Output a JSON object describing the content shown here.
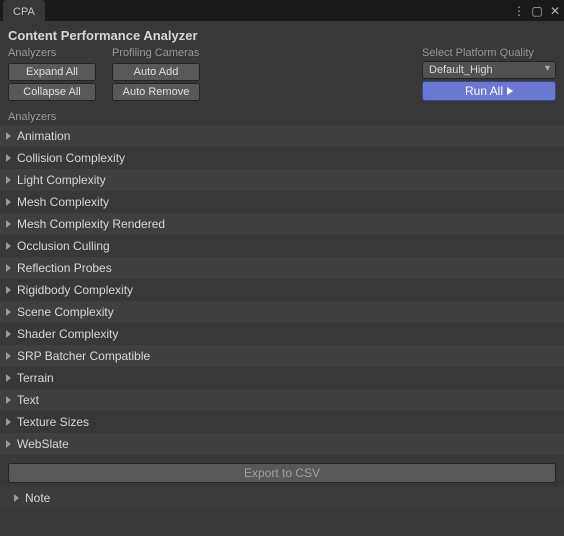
{
  "colors": {
    "window_bg": "#383838",
    "tabbar_bg": "#191919",
    "row_alt_a": "#3f3f3f",
    "row_alt_b": "#383838",
    "btn_bg": "#585858",
    "run_bg": "#6a78d1",
    "text": "#c4c4c4"
  },
  "tab": {
    "label": "CPA"
  },
  "window_icons": {
    "menu": "⋮",
    "maximize": "▢",
    "close": "✕"
  },
  "header": {
    "title": "Content Performance Analyzer"
  },
  "toolbar": {
    "analyzers_label": "Analyzers",
    "cameras_label": "Profiling Cameras",
    "expand_all": "Expand All",
    "collapse_all": "Collapse All",
    "auto_add": "Auto Add",
    "auto_remove": "Auto Remove"
  },
  "quality": {
    "label": "Select Platform Quality",
    "selected": "Default_High"
  },
  "run": {
    "label": "Run All"
  },
  "list": {
    "label": "Analyzers",
    "items": [
      "Animation",
      "Collision Complexity",
      "Light Complexity",
      "Mesh Complexity",
      "Mesh Complexity Rendered",
      "Occlusion Culling",
      "Reflection Probes",
      "Rigidbody Complexity",
      "Scene Complexity",
      "Shader Complexity",
      "SRP Batcher Compatible",
      "Terrain",
      "Text",
      "Texture Sizes",
      "WebSlate"
    ]
  },
  "export": {
    "label": "Export to CSV"
  },
  "note": {
    "label": "Note"
  }
}
